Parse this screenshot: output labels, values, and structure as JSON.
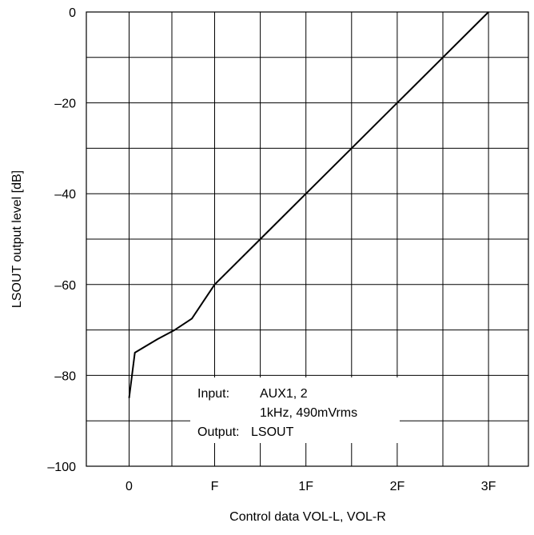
{
  "chart_data": {
    "type": "line",
    "title": "",
    "xlabel": "Control data VOL-L, VOL-R",
    "ylabel": "LSOUT output level [dB]",
    "x_ticks": [
      {
        "value": 0,
        "label": "0"
      },
      {
        "value": 15,
        "label": "F"
      },
      {
        "value": 31,
        "label": "1F"
      },
      {
        "value": 47,
        "label": "2F"
      },
      {
        "value": 63,
        "label": "3F"
      }
    ],
    "y_ticks": [
      {
        "value": 0,
        "label": "0"
      },
      {
        "value": -20,
        "label": "–20"
      },
      {
        "value": -40,
        "label": "–40"
      },
      {
        "value": -60,
        "label": "–60"
      },
      {
        "value": -80,
        "label": "–80"
      },
      {
        "value": -100,
        "label": "–100"
      }
    ],
    "xlim": [
      -7.5,
      70
    ],
    "ylim": [
      -100,
      0
    ],
    "grid": true,
    "series": [
      {
        "x": [
          0,
          1,
          3,
          5,
          8,
          11,
          15,
          23,
          31,
          39,
          47,
          55,
          63
        ],
        "y": [
          -85,
          -75,
          -73.5,
          -72,
          -70,
          -67.5,
          -60,
          -50,
          -40,
          -30,
          -20,
          -10,
          0
        ]
      }
    ],
    "annotation": {
      "rows": [
        {
          "label": "Input:",
          "value": "AUX1, 2"
        },
        {
          "label": "",
          "value": "1kHz, 490mVrms"
        },
        {
          "label": "Output:",
          "value": "LSOUT"
        }
      ]
    }
  },
  "colors": {
    "line": "#000000",
    "grid": "#000000",
    "background": "#ffffff"
  }
}
